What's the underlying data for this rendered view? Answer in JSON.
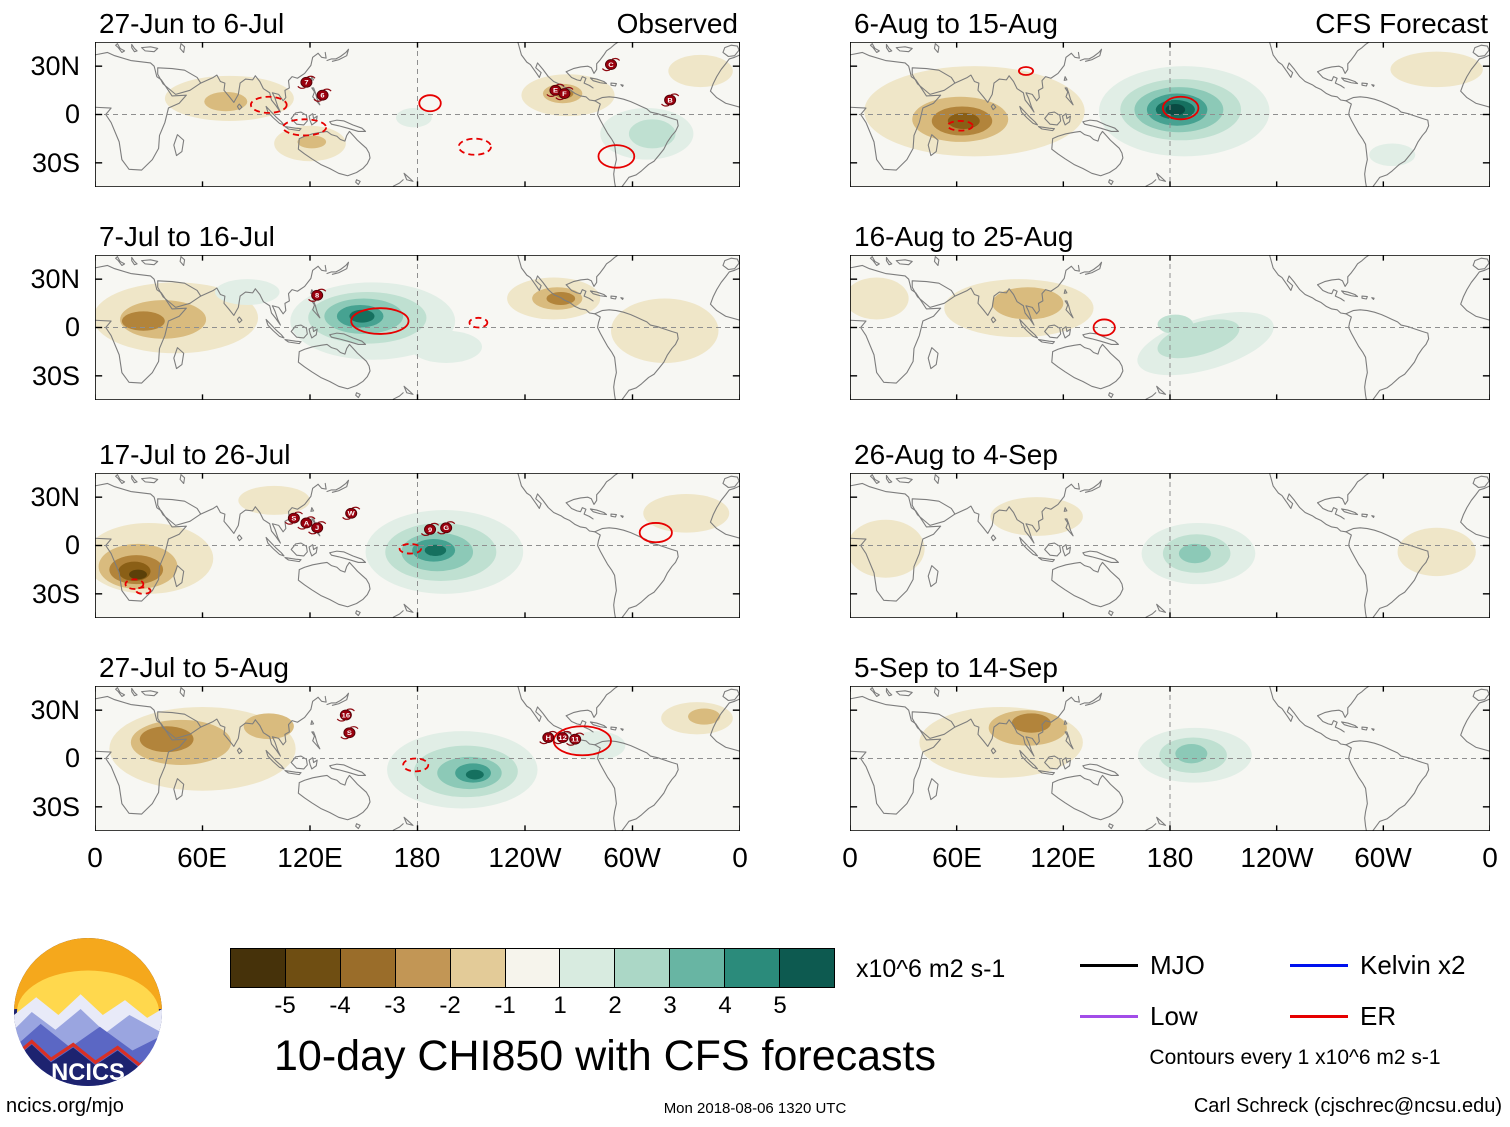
{
  "axis": {
    "lat_labels": [
      "30N",
      "0",
      "30S"
    ],
    "lon_labels": [
      "0",
      "60E",
      "120E",
      "180",
      "120W",
      "60W",
      "0"
    ]
  },
  "colorbar": {
    "colors": [
      "#46320a",
      "#6f4e12",
      "#9a6d2a",
      "#c29655",
      "#e3cb98",
      "#f6f4ec",
      "#d8ebe0",
      "#abd7c6",
      "#68b5a3",
      "#2b8b7b",
      "#0d5a50"
    ],
    "tick_labels": [
      "-5",
      "-4",
      "-3",
      "-2",
      "-1",
      "1",
      "2",
      "3",
      "4",
      "5"
    ],
    "unit": "x10^6 m2 s-1"
  },
  "legend": {
    "items": [
      {
        "label": "MJO",
        "color": "#000000"
      },
      {
        "label": "Kelvin x2",
        "color": "#0011ee"
      },
      {
        "label": "Low",
        "color": "#a24de8"
      },
      {
        "label": "ER",
        "color": "#e60000"
      }
    ],
    "note": "Contours every 1 x10^6 m2 s-1"
  },
  "main_title": "10-day CHI850 with CFS forecasts",
  "footer": {
    "site": "ncics.org/mjo",
    "timestamp": "Mon 2018-08-06 1320 UTC",
    "credit": "Carl Schreck (cjschrec@ncsu.edu)"
  },
  "logo": {
    "text": "NCICS"
  },
  "chart_data": {
    "type": "heatmap",
    "description": "Eight global-tropics map panels (45N-45S, 0-360E) of 10-day mean CHI850 velocity-potential anomalies; left column observed, right column CFS forecast. Shading every 1 x10^6 m2 s-1 from -5 (brown) to +5 (teal); red ER-wave contours; lettered tropical-cyclone symbols.",
    "contour_color": "#e60000",
    "level_colors": {
      "-5": "#5a4009",
      "-4": "#8a5f16",
      "-3": "#b2843b",
      "-2": "#d9bb7e",
      "-1": "#efe6c8",
      "1": "#e1eee6",
      "2": "#bfe0d1",
      "3": "#8cc9b7",
      "4": "#46a291",
      "5": "#15705f",
      "6": "#0a4a42"
    },
    "panels": [
      {
        "title": "27-Jun to 6-Jul",
        "subtitle": "Observed",
        "blobs": [
          [
            75,
            10,
            36,
            14,
            -1
          ],
          [
            73,
            8,
            12,
            6,
            -2
          ],
          [
            120,
            -18,
            20,
            11,
            -1
          ],
          [
            121,
            -17,
            8,
            4,
            -2
          ],
          [
            178,
            -2,
            10,
            6,
            1
          ],
          [
            264,
            12,
            26,
            13,
            -1
          ],
          [
            261,
            13,
            11,
            6,
            -2
          ],
          [
            262,
            13,
            5,
            3,
            -3
          ],
          [
            308,
            -12,
            26,
            16,
            1
          ],
          [
            311,
            -12,
            13,
            9,
            2
          ],
          [
            338,
            27,
            18,
            10,
            -1
          ]
        ],
        "contours": [
          [
            97,
            6,
            10,
            5,
            "dashed"
          ],
          [
            117,
            -8,
            12,
            5,
            "dashed"
          ],
          [
            187,
            7,
            6,
            5,
            "solid"
          ],
          [
            212,
            -20,
            9,
            5,
            "dashed"
          ],
          [
            291,
            -26,
            10,
            7,
            "solid"
          ]
        ],
        "storms": [
          [
            118,
            20,
            "7"
          ],
          [
            127,
            12,
            "6"
          ],
          [
            257,
            15,
            "E"
          ],
          [
            262,
            13,
            "F"
          ],
          [
            288,
            31,
            "C"
          ],
          [
            321,
            9,
            "B"
          ]
        ]
      },
      {
        "title": "7-Jul to 16-Jul",
        "blobs": [
          [
            45,
            6,
            46,
            22,
            -1
          ],
          [
            38,
            5,
            24,
            12,
            -2
          ],
          [
            27,
            4,
            12,
            6,
            -3
          ],
          [
            85,
            22,
            18,
            8,
            1
          ],
          [
            155,
            4,
            46,
            24,
            1
          ],
          [
            152,
            6,
            33,
            16,
            2
          ],
          [
            150,
            7,
            22,
            11,
            3
          ],
          [
            148,
            7,
            13,
            7,
            4
          ],
          [
            149,
            7,
            7,
            4,
            5
          ],
          [
            196,
            -12,
            20,
            10,
            1
          ],
          [
            256,
            18,
            26,
            13,
            -1
          ],
          [
            258,
            18,
            14,
            7,
            -2
          ],
          [
            260,
            18,
            8,
            4,
            -3
          ],
          [
            318,
            -2,
            30,
            20,
            -1
          ]
        ],
        "contours": [
          [
            159,
            4,
            16,
            8,
            "solid"
          ],
          [
            214,
            3,
            5,
            3,
            "dashed"
          ]
        ],
        "storms": [
          [
            124,
            20,
            "8"
          ]
        ]
      },
      {
        "title": "17-Jul to 26-Jul",
        "blobs": [
          [
            30,
            -8,
            36,
            22,
            -1
          ],
          [
            24,
            -13,
            22,
            14,
            -2
          ],
          [
            23,
            -15,
            15,
            9,
            -3
          ],
          [
            22,
            -16,
            9,
            6,
            -4
          ],
          [
            24,
            -18,
            5,
            3,
            -5
          ],
          [
            100,
            28,
            20,
            9,
            -1
          ],
          [
            195,
            -4,
            44,
            26,
            1
          ],
          [
            193,
            -4,
            31,
            18,
            2
          ],
          [
            191,
            -4,
            20,
            12,
            3
          ],
          [
            189,
            -3,
            12,
            7,
            4
          ],
          [
            190,
            -3,
            6,
            3.5,
            5
          ],
          [
            330,
            20,
            24,
            12,
            -1
          ]
        ],
        "contours": [
          [
            22,
            -24,
            5,
            3,
            "dashed"
          ],
          [
            27,
            -28,
            4,
            2,
            "dashed"
          ],
          [
            176,
            -2,
            6,
            3,
            "dashed"
          ],
          [
            313,
            8,
            9,
            6,
            "solid"
          ]
        ],
        "storms": [
          [
            111,
            17,
            "S"
          ],
          [
            118,
            14,
            "A"
          ],
          [
            124,
            11,
            "J"
          ],
          [
            143,
            20,
            "W"
          ],
          [
            187,
            10,
            "9"
          ],
          [
            196,
            11,
            "G"
          ]
        ]
      },
      {
        "title": "27-Jul to 5-Aug",
        "blobs": [
          [
            60,
            6,
            52,
            26,
            -1
          ],
          [
            48,
            10,
            28,
            14,
            -2
          ],
          [
            40,
            12,
            15,
            8,
            -3
          ],
          [
            97,
            20,
            14,
            8,
            -2
          ],
          [
            205,
            -7,
            42,
            24,
            1
          ],
          [
            207,
            -8,
            29,
            16,
            2
          ],
          [
            209,
            -9,
            18,
            10,
            3
          ],
          [
            211,
            -9,
            10,
            6,
            4
          ],
          [
            212,
            -10,
            5,
            3,
            5
          ],
          [
            280,
            8,
            16,
            9,
            1
          ],
          [
            336,
            25,
            20,
            10,
            -1
          ],
          [
            340,
            26,
            9,
            5,
            -2
          ]
        ],
        "contours": [
          [
            179,
            -4,
            7,
            4,
            "dashed"
          ],
          [
            272,
            11,
            16,
            9,
            "solid"
          ]
        ],
        "storms": [
          [
            140,
            27,
            "16"
          ],
          [
            142,
            16,
            "S"
          ],
          [
            253,
            13,
            "H"
          ],
          [
            261,
            13,
            "12"
          ],
          [
            268,
            12,
            "11"
          ]
        ]
      },
      {
        "title": "6-Aug to 15-Aug",
        "subtitle": "CFS Forecast",
        "blobs": [
          [
            70,
            2,
            62,
            28,
            -1
          ],
          [
            62,
            -3,
            27,
            14,
            -2
          ],
          [
            63,
            -4,
            17,
            9,
            -3
          ],
          [
            64,
            -4,
            9,
            5,
            -4
          ],
          [
            188,
            2,
            48,
            28,
            1
          ],
          [
            186,
            3,
            34,
            19,
            2
          ],
          [
            185,
            3,
            25,
            14,
            3
          ],
          [
            184,
            3,
            17,
            10,
            4
          ],
          [
            183,
            3,
            11,
            6,
            5
          ],
          [
            183,
            3,
            5.5,
            3.5,
            6
          ],
          [
            330,
            28,
            26,
            11,
            -1
          ],
          [
            305,
            -25,
            13,
            7,
            1
          ]
        ],
        "contours": [
          [
            186,
            4,
            10,
            7,
            "solid"
          ],
          [
            62,
            -7,
            7,
            3,
            "dashed"
          ],
          [
            99,
            27,
            4,
            2.5,
            "solid"
          ]
        ],
        "storms": []
      },
      {
        "title": "16-Aug to 25-Aug",
        "blobs": [
          [
            95,
            12,
            42,
            18,
            -1
          ],
          [
            100,
            15,
            20,
            10,
            -2
          ],
          [
            15,
            18,
            18,
            13,
            -1
          ],
          [
            200,
            -10,
            40,
            16,
            1,
            -18
          ],
          [
            196,
            -7,
            24,
            10,
            2,
            -18
          ],
          [
            183,
            2,
            10,
            6,
            2
          ]
        ],
        "contours": [
          [
            143,
            0,
            6,
            5,
            "solid"
          ]
        ],
        "storms": []
      },
      {
        "title": "26-Aug to 4-Sep",
        "blobs": [
          [
            20,
            -2,
            22,
            18,
            -1
          ],
          [
            105,
            18,
            26,
            12,
            -1
          ],
          [
            196,
            -5,
            32,
            19,
            1
          ],
          [
            195,
            -5,
            19,
            12,
            2
          ],
          [
            194,
            -5,
            9,
            6,
            3
          ],
          [
            330,
            -4,
            22,
            15,
            -1
          ]
        ],
        "contours": [],
        "storms": []
      },
      {
        "title": "5-Sep to 14-Sep",
        "blobs": [
          [
            85,
            10,
            46,
            22,
            -1
          ],
          [
            100,
            19,
            22,
            11,
            -2
          ],
          [
            102,
            22,
            11,
            6,
            -3
          ],
          [
            194,
            2,
            32,
            17,
            1
          ],
          [
            193,
            2,
            19,
            11,
            2
          ],
          [
            192,
            3,
            9,
            6,
            3
          ]
        ],
        "contours": [],
        "storms": []
      }
    ]
  }
}
